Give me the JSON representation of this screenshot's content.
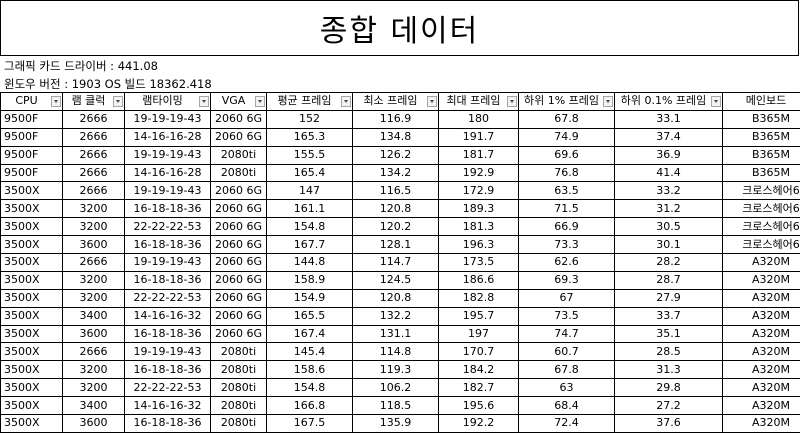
{
  "title": "종합 데이터",
  "info": {
    "driver": "그래픽 카드 드라이버 : 441.08",
    "os": "윈도우 버전 : 1903 OS 빌드 18362.418"
  },
  "table": {
    "headers": [
      "CPU",
      "램 클럭",
      "램타이밍",
      "VGA",
      "평균 프레임",
      "최소 프레임",
      "최대 프레임",
      "하위 1% 프레임",
      "하위 0.1% 프레임",
      "메인보드"
    ],
    "rows": [
      [
        "9500F",
        "2666",
        "19-19-19-43",
        "2060 6G",
        "152",
        "116.9",
        "180",
        "67.8",
        "33.1",
        "B365M"
      ],
      [
        "9500F",
        "2666",
        "14-16-16-28",
        "2060 6G",
        "165.3",
        "134.8",
        "191.7",
        "74.9",
        "37.4",
        "B365M"
      ],
      [
        "9500F",
        "2666",
        "19-19-19-43",
        "2080ti",
        "155.5",
        "126.2",
        "181.7",
        "69.6",
        "36.9",
        "B365M"
      ],
      [
        "9500F",
        "2666",
        "14-16-16-28",
        "2080ti",
        "165.4",
        "134.2",
        "192.9",
        "76.8",
        "41.4",
        "B365M"
      ],
      [
        "3500X",
        "2666",
        "19-19-19-43",
        "2060 6G",
        "147",
        "116.5",
        "172.9",
        "63.5",
        "33.2",
        "크로스헤어6"
      ],
      [
        "3500X",
        "3200",
        "16-18-18-36",
        "2060 6G",
        "161.1",
        "120.8",
        "189.3",
        "71.5",
        "31.2",
        "크로스헤어6"
      ],
      [
        "3500X",
        "3200",
        "22-22-22-53",
        "2060 6G",
        "154.8",
        "120.2",
        "181.3",
        "66.9",
        "30.5",
        "크로스헤어6"
      ],
      [
        "3500X",
        "3600",
        "16-18-18-36",
        "2060 6G",
        "167.7",
        "128.1",
        "196.3",
        "73.3",
        "30.1",
        "크로스헤어6"
      ],
      [
        "3500X",
        "2666",
        "19-19-19-43",
        "2060 6G",
        "144.8",
        "114.7",
        "173.5",
        "62.6",
        "28.2",
        "A320M"
      ],
      [
        "3500X",
        "3200",
        "16-18-18-36",
        "2060 6G",
        "158.9",
        "124.5",
        "186.6",
        "69.3",
        "28.7",
        "A320M"
      ],
      [
        "3500X",
        "3200",
        "22-22-22-53",
        "2060 6G",
        "154.9",
        "120.8",
        "182.8",
        "67",
        "27.9",
        "A320M"
      ],
      [
        "3500X",
        "3400",
        "14-16-16-32",
        "2060 6G",
        "165.5",
        "132.2",
        "195.7",
        "73.5",
        "33.7",
        "A320M"
      ],
      [
        "3500X",
        "3600",
        "16-18-18-36",
        "2060 6G",
        "167.4",
        "131.1",
        "197",
        "74.7",
        "35.1",
        "A320M"
      ],
      [
        "3500X",
        "2666",
        "19-19-19-43",
        "2080ti",
        "145.4",
        "114.8",
        "170.7",
        "60.7",
        "28.5",
        "A320M"
      ],
      [
        "3500X",
        "3200",
        "16-18-18-36",
        "2080ti",
        "158.6",
        "119.3",
        "184.2",
        "67.8",
        "31.3",
        "A320M"
      ],
      [
        "3500X",
        "3200",
        "22-22-22-53",
        "2080ti",
        "154.8",
        "106.2",
        "182.7",
        "63",
        "29.8",
        "A320M"
      ],
      [
        "3500X",
        "3400",
        "14-16-16-32",
        "2080ti",
        "166.8",
        "118.5",
        "195.6",
        "68.4",
        "27.2",
        "A320M"
      ],
      [
        "3500X",
        "3600",
        "16-18-18-36",
        "2080ti",
        "167.5",
        "135.9",
        "192.2",
        "72.4",
        "37.6",
        "A320M"
      ]
    ]
  }
}
